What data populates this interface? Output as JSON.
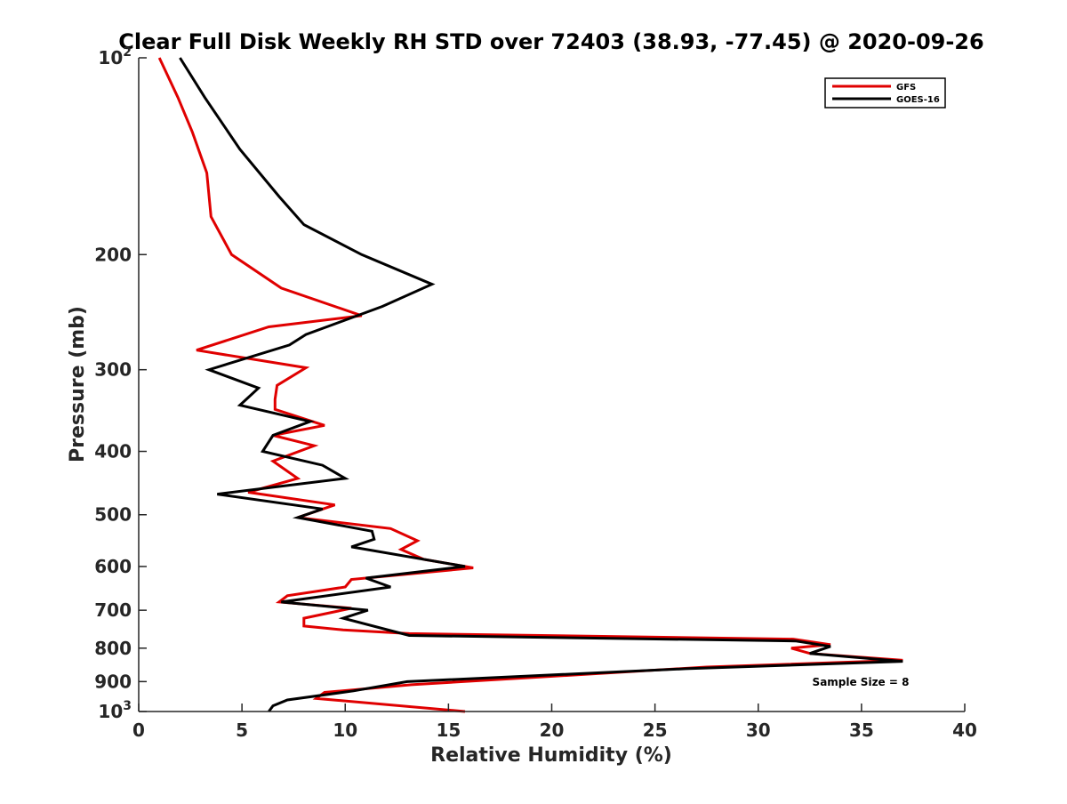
{
  "chart_data": {
    "type": "line",
    "title": "Clear Full Disk Weekly RH STD over 72403 (38.93, -77.45) @ 2020-09-26",
    "xlabel": "Relative Humidity (%)",
    "ylabel": "Pressure (mb)",
    "xlim": [
      0,
      40
    ],
    "ylim": [
      100,
      1000
    ],
    "yscale": "log",
    "y_reversed": true,
    "grid": false,
    "legend_position": "top-right",
    "x_ticks": [
      "0",
      "5",
      "10",
      "15",
      "20",
      "25",
      "30",
      "35",
      "40"
    ],
    "y_ticks": [
      {
        "value": 100,
        "base": "10",
        "exp": "2"
      },
      {
        "value": 200,
        "label": "200"
      },
      {
        "value": 300,
        "label": "300"
      },
      {
        "value": 400,
        "label": "400"
      },
      {
        "value": 500,
        "label": "500"
      },
      {
        "value": 600,
        "label": "600"
      },
      {
        "value": 700,
        "label": "700"
      },
      {
        "value": 800,
        "label": "800"
      },
      {
        "value": 900,
        "label": "900"
      },
      {
        "value": 1000,
        "base": "10",
        "exp": "3"
      }
    ],
    "annotation": "Sample Size = 8",
    "series": [
      {
        "name": "GFS",
        "color": "#e00000",
        "points": [
          [
            1.0,
            100
          ],
          [
            1.9,
            115
          ],
          [
            2.6,
            130
          ],
          [
            3.3,
            150
          ],
          [
            3.5,
            175
          ],
          [
            4.5,
            200
          ],
          [
            6.9,
            225
          ],
          [
            10.8,
            248
          ],
          [
            6.3,
            258
          ],
          [
            2.8,
            280
          ],
          [
            8.1,
            298
          ],
          [
            6.7,
            317
          ],
          [
            6.6,
            333
          ],
          [
            6.6,
            345
          ],
          [
            9.0,
            365
          ],
          [
            6.5,
            378
          ],
          [
            8.5,
            392
          ],
          [
            6.5,
            414
          ],
          [
            7.7,
            440
          ],
          [
            5.3,
            462
          ],
          [
            9.5,
            483
          ],
          [
            7.7,
            505
          ],
          [
            12.2,
            525
          ],
          [
            13.5,
            548
          ],
          [
            12.7,
            565
          ],
          [
            13.8,
            585
          ],
          [
            16.2,
            603
          ],
          [
            10.3,
            628
          ],
          [
            10.0,
            645
          ],
          [
            7.2,
            665
          ],
          [
            6.8,
            680
          ],
          [
            10.3,
            695
          ],
          [
            8.0,
            720
          ],
          [
            8.0,
            740
          ],
          [
            9.9,
            750
          ],
          [
            13.1,
            760
          ],
          [
            31.7,
            775
          ],
          [
            33.5,
            790
          ],
          [
            31.6,
            800
          ],
          [
            32.5,
            815
          ],
          [
            37.0,
            835
          ],
          [
            27.5,
            855
          ],
          [
            13.2,
            910
          ],
          [
            9.0,
            935
          ],
          [
            8.6,
            955
          ],
          [
            15.8,
            1000
          ]
        ]
      },
      {
        "name": "GOES-16",
        "color": "#000000",
        "points": [
          [
            2.0,
            100
          ],
          [
            3.2,
            115
          ],
          [
            4.9,
            138
          ],
          [
            6.8,
            163
          ],
          [
            8.0,
            180
          ],
          [
            10.8,
            200
          ],
          [
            14.2,
            222
          ],
          [
            11.8,
            240
          ],
          [
            8.1,
            265
          ],
          [
            7.3,
            275
          ],
          [
            3.4,
            300
          ],
          [
            5.8,
            320
          ],
          [
            4.9,
            340
          ],
          [
            8.3,
            360
          ],
          [
            6.5,
            378
          ],
          [
            6.0,
            400
          ],
          [
            8.9,
            420
          ],
          [
            10.0,
            440
          ],
          [
            3.8,
            465
          ],
          [
            8.9,
            490
          ],
          [
            7.7,
            505
          ],
          [
            11.3,
            530
          ],
          [
            11.4,
            545
          ],
          [
            10.3,
            560
          ],
          [
            15.8,
            600
          ],
          [
            11.0,
            625
          ],
          [
            12.2,
            645
          ],
          [
            6.9,
            680
          ],
          [
            11.1,
            700
          ],
          [
            9.9,
            720
          ],
          [
            13.1,
            765
          ],
          [
            31.8,
            780
          ],
          [
            33.5,
            795
          ],
          [
            32.5,
            815
          ],
          [
            37.0,
            838
          ],
          [
            26.5,
            860
          ],
          [
            13.0,
            900
          ],
          [
            10.4,
            930
          ],
          [
            7.2,
            960
          ],
          [
            6.5,
            980
          ],
          [
            6.3,
            1000
          ]
        ]
      }
    ]
  }
}
